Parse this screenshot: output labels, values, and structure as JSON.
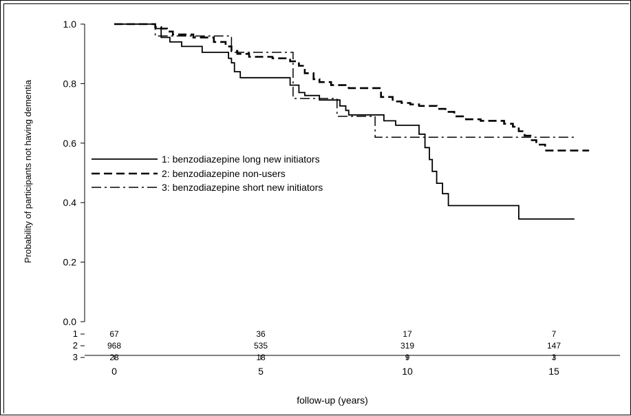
{
  "chart_data": {
    "type": "line",
    "step": true,
    "xlabel": "follow-up (years)",
    "ylabel": "Probability of participants not having dementia",
    "xlim": [
      -1,
      18
    ],
    "ylim": [
      0.0,
      1.0
    ],
    "x_ticks": [
      "0",
      "5",
      "10",
      "15"
    ],
    "x_tick_values": [
      0,
      5,
      10,
      15
    ],
    "y_ticks": [
      "0.0",
      "0.2",
      "0.4",
      "0.6",
      "0.8",
      "1.0"
    ],
    "y_tick_values": [
      0.0,
      0.2,
      0.4,
      0.6,
      0.8,
      1.0
    ],
    "grid": false,
    "legend_position": "middle-left",
    "series": [
      {
        "name": "1: benzodiazepine long new initiators",
        "style": "solid",
        "color": "#000000",
        "points": [
          [
            0,
            1.0
          ],
          [
            1.4,
            0.985
          ],
          [
            1.6,
            0.955
          ],
          [
            1.9,
            0.94
          ],
          [
            2.3,
            0.925
          ],
          [
            3.0,
            0.905
          ],
          [
            3.9,
            0.885
          ],
          [
            4.0,
            0.87
          ],
          [
            4.1,
            0.84
          ],
          [
            4.3,
            0.82
          ],
          [
            5.5,
            0.82
          ],
          [
            6.0,
            0.795
          ],
          [
            6.3,
            0.77
          ],
          [
            6.5,
            0.76
          ],
          [
            7.0,
            0.745
          ],
          [
            7.7,
            0.725
          ],
          [
            7.9,
            0.71
          ],
          [
            8.0,
            0.695
          ],
          [
            8.7,
            0.695
          ],
          [
            9.2,
            0.675
          ],
          [
            9.6,
            0.66
          ],
          [
            10.1,
            0.66
          ],
          [
            10.4,
            0.63
          ],
          [
            10.6,
            0.585
          ],
          [
            10.75,
            0.545
          ],
          [
            10.85,
            0.505
          ],
          [
            11.0,
            0.465
          ],
          [
            11.2,
            0.43
          ],
          [
            11.4,
            0.39
          ],
          [
            13.8,
            0.39
          ],
          [
            13.8,
            0.345
          ],
          [
            15.7,
            0.345
          ]
        ]
      },
      {
        "name": "2: benzodiazepine non-users",
        "style": "dashed",
        "color": "#000000",
        "points": [
          [
            0,
            1.0
          ],
          [
            1.4,
            0.99
          ],
          [
            1.6,
            0.985
          ],
          [
            1.8,
            0.975
          ],
          [
            2.0,
            0.965
          ],
          [
            2.7,
            0.955
          ],
          [
            3.4,
            0.94
          ],
          [
            3.8,
            0.925
          ],
          [
            4.0,
            0.91
          ],
          [
            4.2,
            0.9
          ],
          [
            4.6,
            0.89
          ],
          [
            5.4,
            0.885
          ],
          [
            6.0,
            0.875
          ],
          [
            6.3,
            0.86
          ],
          [
            6.5,
            0.835
          ],
          [
            6.8,
            0.815
          ],
          [
            7.0,
            0.805
          ],
          [
            7.4,
            0.795
          ],
          [
            8.0,
            0.785
          ],
          [
            8.6,
            0.785
          ],
          [
            9.1,
            0.755
          ],
          [
            9.5,
            0.74
          ],
          [
            9.8,
            0.735
          ],
          [
            10.1,
            0.73
          ],
          [
            10.4,
            0.725
          ],
          [
            11.0,
            0.715
          ],
          [
            11.3,
            0.705
          ],
          [
            11.6,
            0.69
          ],
          [
            12.0,
            0.68
          ],
          [
            12.5,
            0.675
          ],
          [
            13.3,
            0.665
          ],
          [
            13.6,
            0.655
          ],
          [
            13.8,
            0.64
          ],
          [
            14.0,
            0.625
          ],
          [
            14.2,
            0.61
          ],
          [
            14.4,
            0.595
          ],
          [
            14.7,
            0.575
          ],
          [
            16.2,
            0.575
          ]
        ]
      },
      {
        "name": "3: benzodiazepine short new initiators",
        "style": "dashdot",
        "color": "#000000",
        "points": [
          [
            0,
            1.0
          ],
          [
            1.4,
            1.0
          ],
          [
            1.4,
            0.96
          ],
          [
            4.0,
            0.96
          ],
          [
            4.0,
            0.905
          ],
          [
            6.1,
            0.905
          ],
          [
            6.1,
            0.75
          ],
          [
            7.6,
            0.75
          ],
          [
            7.6,
            0.69
          ],
          [
            8.9,
            0.69
          ],
          [
            8.9,
            0.62
          ],
          [
            15.7,
            0.62
          ]
        ]
      }
    ],
    "risk_table": {
      "row_labels": [
        "1",
        "2",
        "3"
      ],
      "times": [
        0,
        5,
        10,
        15
      ],
      "rows": [
        [
          "67",
          "36",
          "17",
          "7"
        ],
        [
          "968",
          "535",
          "319",
          "147"
        ],
        [
          "28",
          "18",
          "9",
          "3"
        ]
      ]
    }
  }
}
